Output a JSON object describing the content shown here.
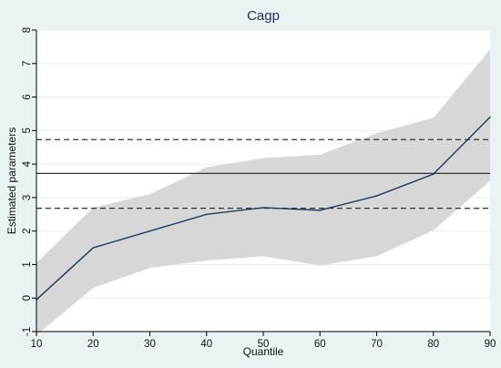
{
  "chart_data": {
    "type": "line",
    "title": "Cagp",
    "xlabel": "Quantile",
    "ylabel": "Estimated parameters",
    "x": [
      10,
      20,
      30,
      40,
      50,
      60,
      70,
      80,
      90
    ],
    "xticks": [
      "10",
      "20",
      "30",
      "40",
      "50",
      "60",
      "70",
      "80",
      "90"
    ],
    "yticks": [
      "-1",
      "0",
      "1",
      "2",
      "3",
      "4",
      "5",
      "6",
      "7",
      "8"
    ],
    "xlim": [
      10,
      90
    ],
    "ylim": [
      -1,
      8
    ],
    "series": [
      {
        "role": "quantile-estimate",
        "values": [
          -0.05,
          1.5,
          2.0,
          2.5,
          2.7,
          2.62,
          3.05,
          3.7,
          5.4
        ],
        "ci_lower": [
          -1.1,
          0.3,
          0.9,
          1.12,
          1.25,
          0.97,
          1.25,
          2.02,
          3.5
        ],
        "ci_upper": [
          1.05,
          2.7,
          3.1,
          3.9,
          4.18,
          4.28,
          4.92,
          5.38,
          7.42
        ]
      }
    ],
    "reference_lines": [
      {
        "style": "solid",
        "value": 3.72
      },
      {
        "style": "dashed",
        "value": 4.73
      },
      {
        "style": "dashed",
        "value": 2.68
      }
    ],
    "grid": "horizontal",
    "colors": {
      "line": "#1f3c5a",
      "band": "#d7d7d7",
      "grid": "#e8eeef",
      "reference": "#333333",
      "outer_background": "#eaf2f3",
      "plot_background": "#ffffff",
      "title": "#1e2d5c"
    }
  }
}
